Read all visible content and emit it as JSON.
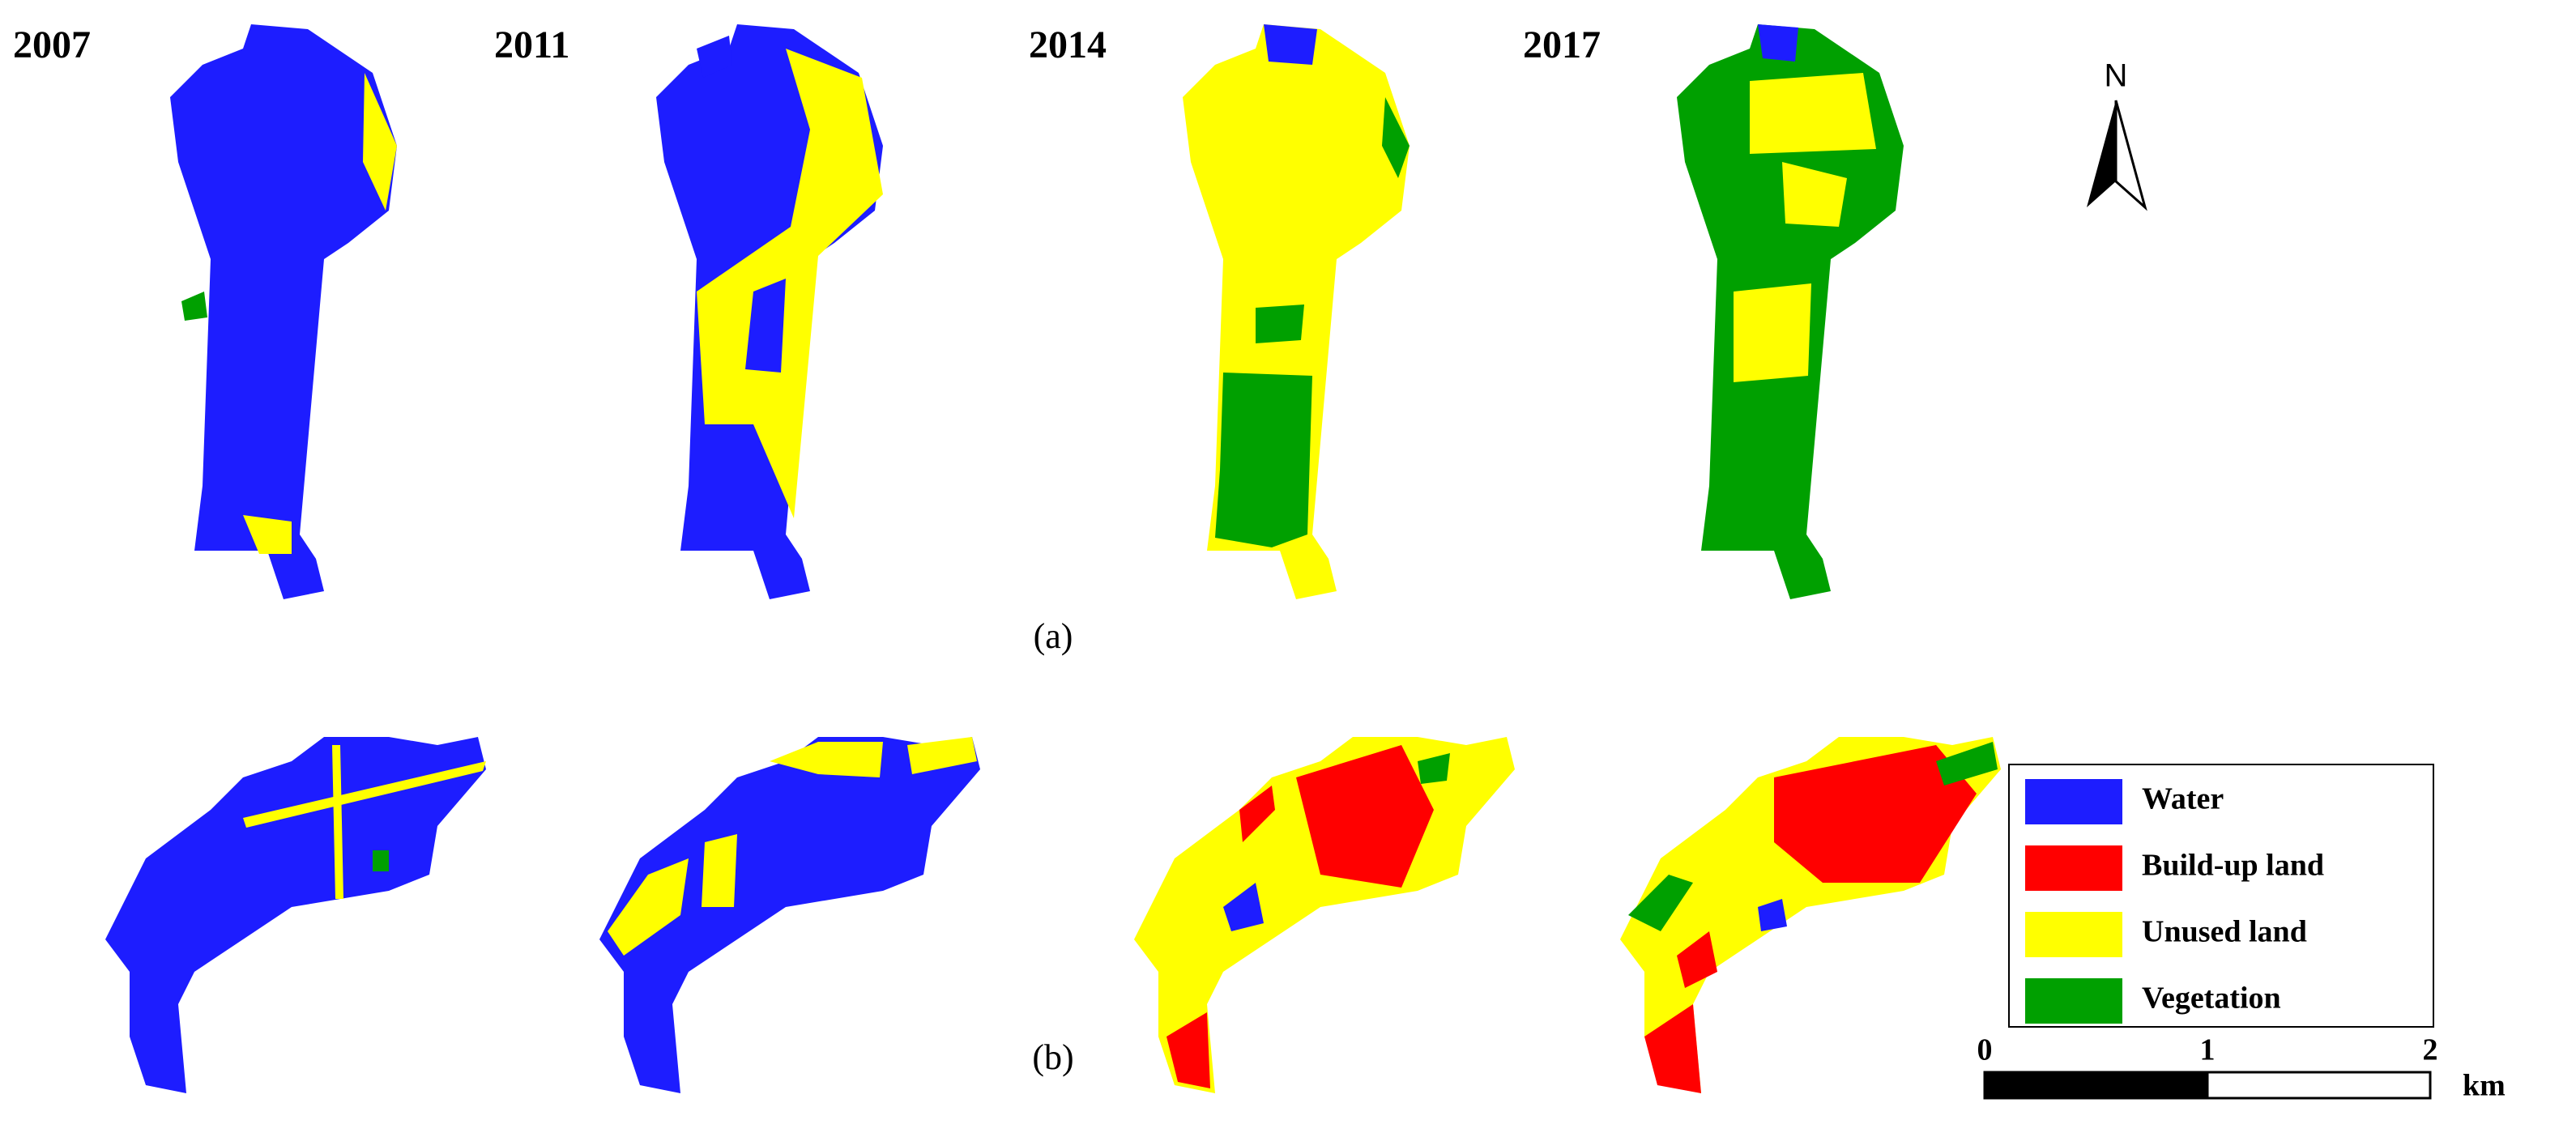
{
  "panel_a": {
    "label": "(a)",
    "years": [
      "2007",
      "2011",
      "2014",
      "2017"
    ]
  },
  "panel_b": {
    "label": "(b)"
  },
  "north_arrow": {
    "label": "N"
  },
  "legend": {
    "items": [
      {
        "label": "Water",
        "color": "#1d1dff"
      },
      {
        "label": "Build-up land",
        "color": "#ff0000"
      },
      {
        "label": "Unused land",
        "color": "#ffff00"
      },
      {
        "label": "Vegetation",
        "color": "#00a000"
      }
    ]
  },
  "scale_bar": {
    "ticks": [
      0,
      1,
      2
    ],
    "unit": "km"
  }
}
